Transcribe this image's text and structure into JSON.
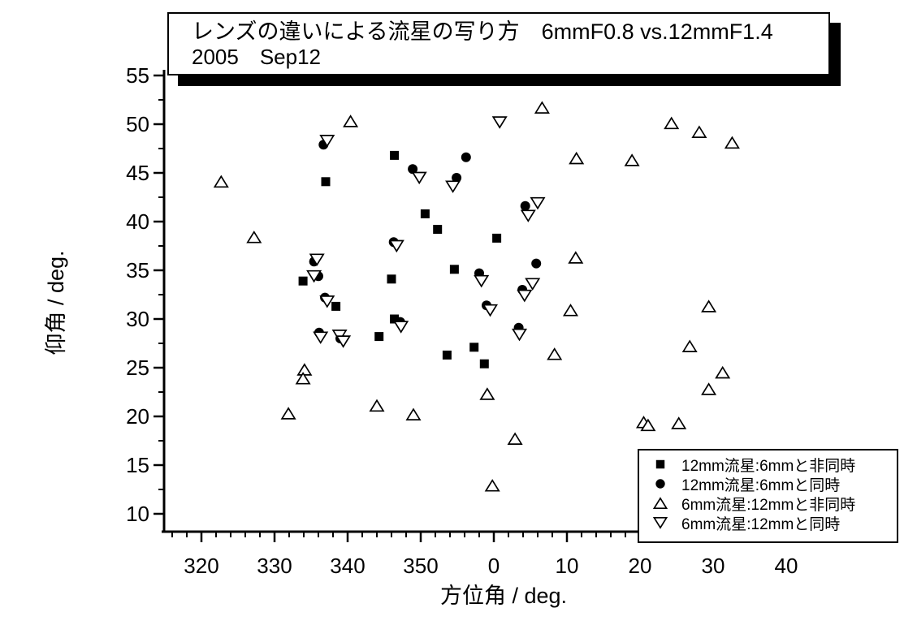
{
  "title": {
    "line1": "レンズの違いによる流星の写り方　6mmF0.8 vs.12mmF1.4",
    "line2": "2005　Sep12"
  },
  "axes": {
    "x": {
      "label": "方位角 / deg.",
      "tick_labels": [
        "320",
        "330",
        "340",
        "350",
        "0",
        "10",
        "20",
        "30",
        "40"
      ]
    },
    "y": {
      "label": "仰角 / deg.",
      "tick_labels": [
        "10",
        "15",
        "20",
        "25",
        "30",
        "35",
        "40",
        "45",
        "50",
        "55"
      ]
    }
  },
  "legend": {
    "items": [
      {
        "marker": "filled-square",
        "label": "12mm流星:6mmと非同時"
      },
      {
        "marker": "filled-circle",
        "label": "12mm流星:6mmと同時"
      },
      {
        "marker": "open-triangle-up",
        "label": "6mm流星:12mmと非同時"
      },
      {
        "marker": "open-triangle-down",
        "label": "6mm流星:12mmと同時"
      }
    ]
  },
  "chart_data": {
    "type": "scatter",
    "title": "レンズの違いによる流星の写り方　6mmF0.8 vs.12mmF1.4",
    "subtitle": "2005　Sep12",
    "xlabel": "方位角 / deg.",
    "ylabel": "仰角 / deg.",
    "x_axis": {
      "tick_values": [
        320,
        330,
        340,
        350,
        0,
        10,
        20,
        30,
        40
      ],
      "minor_step_deg": 2,
      "range_deg": [
        315,
        50.5
      ],
      "note": "azimuth wraps through 360/0"
    },
    "y_axis": {
      "tick_values": [
        10,
        15,
        20,
        25,
        30,
        35,
        40,
        45,
        50,
        55
      ],
      "minor_step_deg": 2.5,
      "range_deg": [
        8.2,
        55.4
      ]
    },
    "grid": false,
    "legend_position": "bottom-right inside",
    "marker_color": "#000000",
    "series": [
      {
        "name": "12mm流星:6mmと非同時",
        "marker": "filled-square",
        "points": [
          [
            346.4,
            46.8
          ],
          [
            337.0,
            44.1
          ],
          [
            350.6,
            40.8
          ],
          [
            352.3,
            39.2
          ],
          [
            0.4,
            38.3
          ],
          [
            354.6,
            35.1
          ],
          [
            333.9,
            33.9
          ],
          [
            346.0,
            34.1
          ],
          [
            338.4,
            31.3
          ],
          [
            346.4,
            30.0
          ],
          [
            344.3,
            28.2
          ],
          [
            357.3,
            27.1
          ],
          [
            353.6,
            26.3
          ],
          [
            358.7,
            25.4
          ]
        ]
      },
      {
        "name": "12mm流星:6mmと同時",
        "marker": "filled-circle",
        "points": [
          [
            336.7,
            47.9
          ],
          [
            356.2,
            46.6
          ],
          [
            348.9,
            45.4
          ],
          [
            354.9,
            44.5
          ],
          [
            4.3,
            41.6
          ],
          [
            346.3,
            37.9
          ],
          [
            335.4,
            35.9
          ],
          [
            5.8,
            35.7
          ],
          [
            358.0,
            34.7
          ],
          [
            336.0,
            34.4
          ],
          [
            3.9,
            33.0
          ],
          [
            336.9,
            32.2
          ],
          [
            359.0,
            31.4
          ],
          [
            347.2,
            29.7
          ],
          [
            3.4,
            29.1
          ],
          [
            336.1,
            28.6
          ],
          [
            339.0,
            28.0
          ]
        ]
      },
      {
        "name": "6mm流星:12mmと非同時",
        "marker": "open-triangle-up",
        "points": [
          [
            6.6,
            51.7
          ],
          [
            340.4,
            50.3
          ],
          [
            24.3,
            50.1
          ],
          [
            28.1,
            49.2
          ],
          [
            32.6,
            48.1
          ],
          [
            11.3,
            46.5
          ],
          [
            18.9,
            46.3
          ],
          [
            322.7,
            44.1
          ],
          [
            327.2,
            38.4
          ],
          [
            11.2,
            36.3
          ],
          [
            29.4,
            31.3
          ],
          [
            10.5,
            30.9
          ],
          [
            26.8,
            27.2
          ],
          [
            8.3,
            26.4
          ],
          [
            334.1,
            24.8
          ],
          [
            31.3,
            24.5
          ],
          [
            333.9,
            23.9
          ],
          [
            29.4,
            22.8
          ],
          [
            359.1,
            22.3
          ],
          [
            344.0,
            21.1
          ],
          [
            331.9,
            20.3
          ],
          [
            349.0,
            20.2
          ],
          [
            20.5,
            19.4
          ],
          [
            25.3,
            19.3
          ],
          [
            21.1,
            19.1
          ],
          [
            2.9,
            17.7
          ],
          [
            359.8,
            12.9
          ]
        ]
      },
      {
        "name": "6mm流星:12mmと同時",
        "marker": "open-triangle-down",
        "points": [
          [
            0.8,
            50.2
          ],
          [
            337.2,
            48.3
          ],
          [
            349.8,
            44.5
          ],
          [
            354.4,
            43.6
          ],
          [
            6.0,
            41.9
          ],
          [
            4.7,
            40.6
          ],
          [
            346.7,
            37.5
          ],
          [
            335.8,
            36.1
          ],
          [
            335.4,
            34.4
          ],
          [
            358.3,
            33.9
          ],
          [
            5.3,
            33.6
          ],
          [
            4.2,
            32.4
          ],
          [
            337.2,
            31.8
          ],
          [
            359.5,
            30.9
          ],
          [
            347.3,
            29.2
          ],
          [
            338.9,
            28.3
          ],
          [
            3.5,
            28.4
          ],
          [
            336.3,
            28.1
          ],
          [
            339.4,
            27.7
          ]
        ]
      }
    ]
  }
}
